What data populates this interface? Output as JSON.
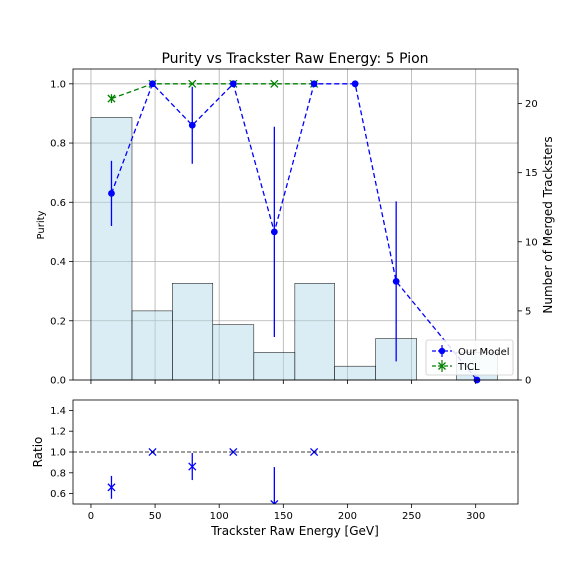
{
  "chart_data": [
    {
      "type": "line",
      "title": "Purity vs Trackster Raw Energy: 5 Pion",
      "xlabel": "",
      "ylabel": "Purity",
      "ylabel_right": "Number of Merged Tracksters",
      "xlim": [
        -14,
        333
      ],
      "ylim": [
        0,
        1.05
      ],
      "ylim_right": [
        0,
        22.5
      ],
      "grid": true,
      "legend_position": "lower-right",
      "yticks": [
        "0.0",
        "0.2",
        "0.4",
        "0.6",
        "0.8",
        "1.0"
      ],
      "yticks_right": [
        "0",
        "5",
        "10",
        "15",
        "20"
      ],
      "histogram": {
        "color": "#add8e6",
        "bin_edges": [
          0,
          32,
          63.5,
          95,
          127,
          159,
          190,
          222,
          254,
          285,
          317
        ],
        "counts": [
          19,
          5,
          7,
          4,
          2,
          7,
          1,
          3,
          0,
          2
        ]
      },
      "series": [
        {
          "name": "Our Model",
          "color": "#0000ff",
          "marker": "circle",
          "x": [
            16,
            48,
            79,
            111,
            143,
            174,
            206,
            238,
            301
          ],
          "y": [
            0.63,
            1.0,
            0.86,
            1.0,
            0.5,
            1.0,
            1.0,
            0.333,
            0.0
          ],
          "yerr": [
            0.11,
            0,
            0.13,
            0,
            0.355,
            0,
            0,
            0.27,
            0
          ]
        },
        {
          "name": "TICL",
          "color": "#008000",
          "marker": "x",
          "x": [
            16,
            48,
            79,
            111,
            143,
            174
          ],
          "y": [
            0.95,
            1.0,
            1.0,
            1.0,
            1.0,
            1.0
          ],
          "yerr": [
            0.015,
            0,
            0,
            0,
            0,
            0
          ]
        }
      ]
    },
    {
      "type": "scatter",
      "title": "",
      "xlabel": "Trackster Raw Energy [GeV]",
      "ylabel": "Ratio",
      "xlim": [
        -14,
        333
      ],
      "ylim": [
        0.5,
        1.5
      ],
      "xticks": [
        "0",
        "50",
        "100",
        "150",
        "200",
        "250",
        "300"
      ],
      "yticks": [
        "0.6",
        "0.8",
        "1.0",
        "1.2",
        "1.4"
      ],
      "reference_line": 1.0,
      "series": [
        {
          "name": "",
          "color": "#0000ff",
          "marker": "x",
          "x": [
            16,
            48,
            79,
            111,
            143,
            174
          ],
          "y": [
            0.66,
            1.0,
            0.86,
            1.0,
            0.5,
            1.0
          ],
          "yerr": [
            0.11,
            0,
            0.13,
            0,
            0.355,
            0
          ]
        }
      ]
    }
  ]
}
